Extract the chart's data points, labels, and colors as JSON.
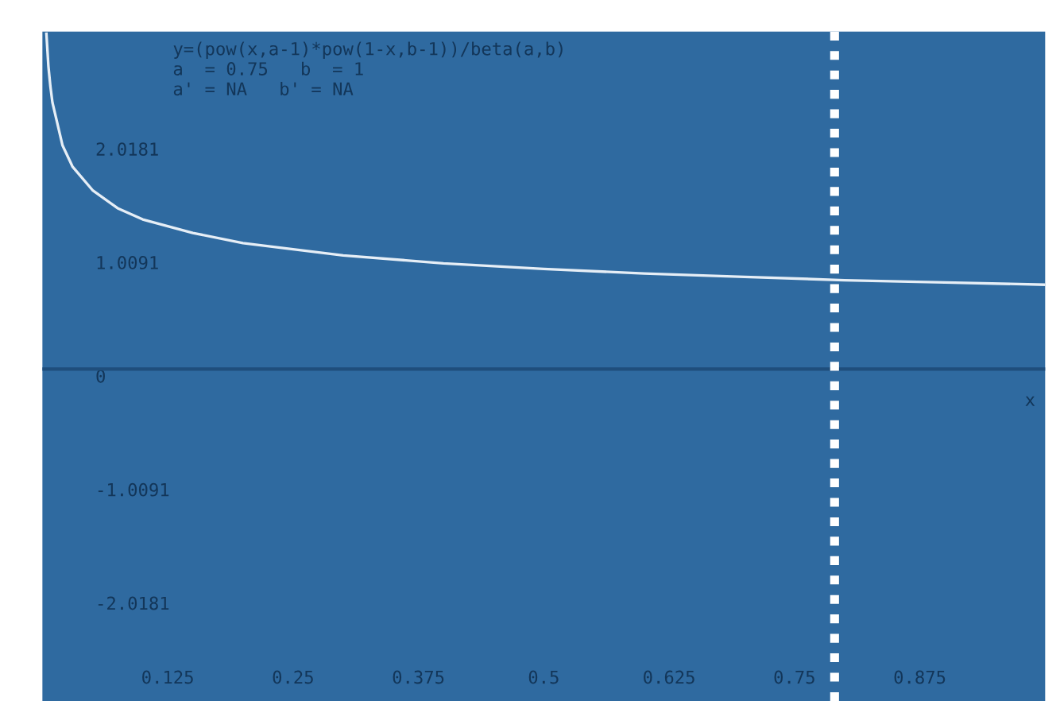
{
  "chart_data": {
    "type": "line",
    "xlabel": "x",
    "annotations": [
      "y=(pow(x,a-1)*pow(1-x,b-1))/beta(a,b)",
      "a  = 0.75   b  = 1",
      "a' = NA   b' = NA"
    ],
    "series": [
      {
        "color": "#e6eef6",
        "x": [
          0.004,
          0.006,
          0.008,
          0.01,
          0.02,
          0.03,
          0.05,
          0.075,
          0.1,
          0.15,
          0.2,
          0.3,
          0.4,
          0.5,
          0.6,
          0.7,
          0.8,
          0.9,
          1.0
        ],
        "values": [
          2.98,
          2.69,
          2.51,
          2.37,
          1.99,
          1.8,
          1.59,
          1.43,
          1.33,
          1.21,
          1.12,
          1.01,
          0.94,
          0.89,
          0.85,
          0.82,
          0.79,
          0.77,
          0.75
        ]
      }
    ],
    "xlim": [
      0,
      1
    ],
    "ylim": [
      -2.95,
      3.0
    ],
    "xticks": [
      0.125,
      0.25,
      0.375,
      0.5,
      0.625,
      0.75,
      0.875
    ],
    "yticks": [
      {
        "value": -2.0181,
        "label": "-2.0181"
      },
      {
        "value": -1.0091,
        "label": "-1.0091"
      },
      0,
      {
        "value": 1.0091,
        "label": "1.0091"
      },
      {
        "value": 2.0181,
        "label": "2.0181"
      }
    ],
    "ref_lines": [
      {
        "axis": "y",
        "value": 0,
        "color": "#1f4e7c",
        "line_style": "solid"
      },
      {
        "axis": "x",
        "value": 0.79,
        "color": "#ffffff",
        "line_style": "dotted"
      }
    ],
    "grid": false,
    "legend": false,
    "marker": "none",
    "line_style": "solid"
  }
}
